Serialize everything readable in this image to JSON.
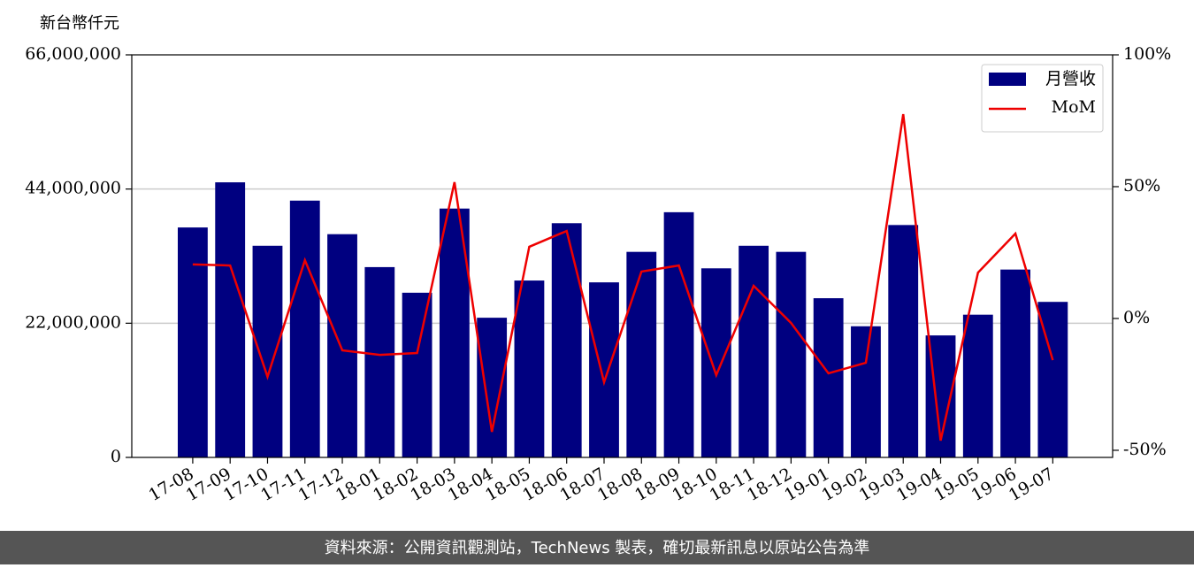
{
  "chart_data": {
    "type": "bar",
    "ylabel": "新台幣仟元",
    "footer": "資料來源：公開資訊觀測站，TechNews 製表，確切最新訊息以原站公告為準",
    "categories": [
      "17-08",
      "17-09",
      "17-10",
      "17-11",
      "17-12",
      "18-01",
      "18-02",
      "18-03",
      "18-04",
      "18-05",
      "18-06",
      "18-07",
      "18-08",
      "18-09",
      "18-10",
      "18-11",
      "18-12",
      "19-01",
      "19-02",
      "19-03",
      "19-04",
      "19-05",
      "19-06",
      "19-07"
    ],
    "series": [
      {
        "name": "月營收",
        "type": "bar",
        "color": "#000080",
        "values": [
          37700000,
          45100000,
          34700000,
          42100000,
          36600000,
          31200000,
          27000000,
          40800000,
          22900000,
          29000000,
          38400000,
          28700000,
          33700000,
          40200000,
          31000000,
          34700000,
          33700000,
          26100000,
          21500000,
          38100000,
          20000000,
          23400000,
          30800000,
          25500000
        ]
      },
      {
        "name": "MoM",
        "type": "line",
        "color": "#ee0000",
        "axis": "y2",
        "values": [
          20.5,
          20.1,
          -22.1,
          22.1,
          -12.1,
          -13.8,
          -13.1,
          51.7,
          -43.0,
          27.2,
          33.2,
          -24.2,
          17.8,
          20.1,
          -21.5,
          12.4,
          -1.7,
          -20.8,
          -16.8,
          77.5,
          -46.3,
          17.4,
          32.2,
          -15.8
        ]
      }
    ],
    "ylim": [
      0,
      66000000
    ],
    "yticks": [
      {
        "value": 0,
        "label": "0"
      },
      {
        "value": 22000000,
        "label": "22,000,000"
      },
      {
        "value": 44000000,
        "label": "44,000,000"
      },
      {
        "value": 66000000,
        "label": "66,000,000"
      }
    ],
    "y2lim": [
      -52.7,
      100
    ],
    "y2ticks": [
      {
        "value": -50,
        "label": "-50%"
      },
      {
        "value": 0,
        "label": "0%"
      },
      {
        "value": 50,
        "label": "50%"
      },
      {
        "value": 100,
        "label": "100%"
      }
    ],
    "grid": true,
    "legend": "upper right"
  }
}
